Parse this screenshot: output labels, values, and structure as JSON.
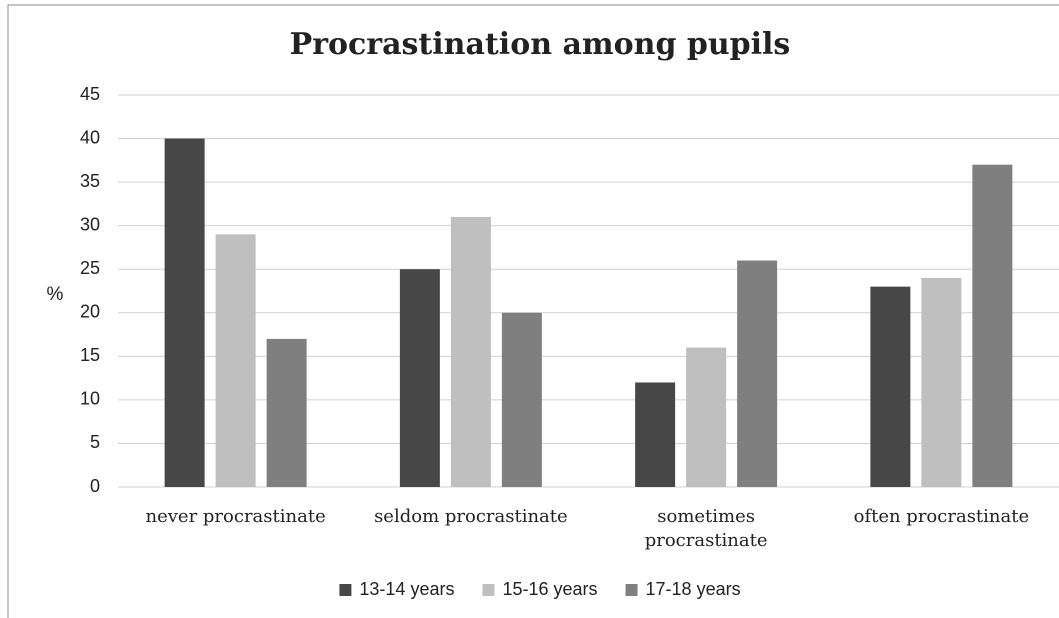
{
  "chart_data": {
    "type": "bar",
    "title": "Procrastination among pupils",
    "y_label": "%",
    "categories": [
      "never procrastinate",
      "seldom procrastinate",
      "sometimes procrastinate",
      "often procrastinate"
    ],
    "series": [
      {
        "name": "13-14 years",
        "color": "#474747",
        "values": [
          40,
          25,
          12,
          23
        ]
      },
      {
        "name": "15-16 years",
        "color": "#bfbfbf",
        "values": [
          29,
          31,
          16,
          24
        ]
      },
      {
        "name": "17-18 years",
        "color": "#7f7f7f",
        "values": [
          17,
          20,
          26,
          37
        ]
      }
    ],
    "ylim": [
      0,
      45
    ],
    "yticks": [
      0,
      5,
      10,
      15,
      20,
      25,
      30,
      35,
      40,
      45
    ],
    "grid": true,
    "legend": "bottom"
  }
}
